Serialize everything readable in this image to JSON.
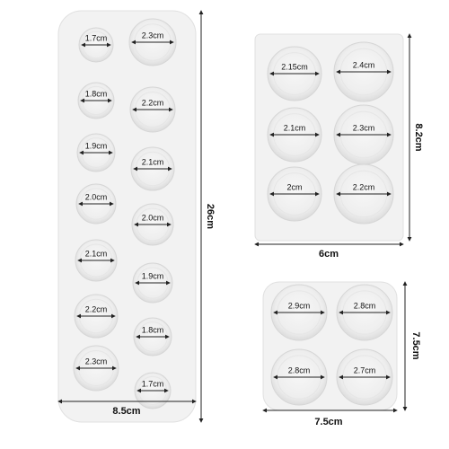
{
  "molds": [
    {
      "cavities": [
        "1.7cm",
        "2.3cm",
        "1.8cm",
        "2.2cm",
        "1.9cm",
        "2.1cm",
        "2.0cm",
        "2.0cm",
        "2.1cm",
        "1.9cm",
        "2.2cm",
        "1.8cm",
        "2.3cm",
        "1.7cm"
      ],
      "width": "8.5cm",
      "height": "26cm"
    },
    {
      "cavities": [
        "2.15cm",
        "2.4cm",
        "2.1cm",
        "2.3cm",
        "2cm",
        "2.2cm"
      ],
      "width": "6cm",
      "height": "8.2cm"
    },
    {
      "cavities": [
        "2.9cm",
        "2.8cm",
        "2.8cm",
        "2.7cm"
      ],
      "width": "7.5cm",
      "height": "7.5cm"
    }
  ]
}
